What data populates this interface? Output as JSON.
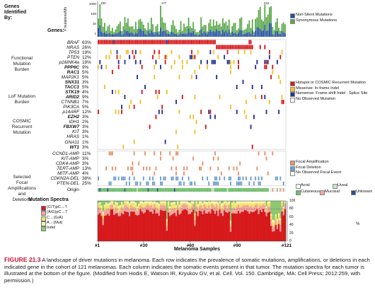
{
  "header": {
    "genes_identified_by": "Genes\nIdentified\nBy:",
    "genes_label": "Genes:",
    "y_axis_label": "# mutations/Mb",
    "y_ticks": [
      "1000",
      "100",
      "10",
      "1"
    ],
    "peaks": [
      "150",
      "177",
      "222"
    ]
  },
  "categories": [
    {
      "label": "Functional\nMutation\nBurden"
    },
    {
      "label": "LoF Mutation\nBurden"
    },
    {
      "label": "COSMIC\nRecurrent\nMutation"
    },
    {
      "label": "Selected\nFocal\nAmplifications\nand\nDeletions"
    }
  ],
  "genes": [
    {
      "name": "BRAF",
      "pct": "63%",
      "style": "i"
    },
    {
      "name": "NRAS",
      "pct": "26%",
      "style": "i"
    },
    {
      "name": "TP53",
      "pct": "19%",
      "style": "i"
    },
    {
      "name": "PTEN",
      "pct": "12%",
      "style": "i"
    },
    {
      "name": "p16INK4a",
      "pct": "19%",
      "style": "i"
    },
    {
      "name": "PPP6C",
      "pct": "9%",
      "style": "b"
    },
    {
      "name": "RAC1",
      "pct": "5%",
      "style": "b"
    },
    {
      "name": "MAP2K1",
      "pct": "5%",
      "style": "i"
    },
    {
      "name": "SNX31",
      "pct": "3%",
      "style": "b"
    },
    {
      "name": "TACC1",
      "pct": "5%",
      "style": "b"
    },
    {
      "name": "STK19",
      "pct": "4%",
      "style": "b"
    },
    {
      "name": "ARID2",
      "pct": "9%",
      "style": "b"
    },
    {
      "name": "CTNNB1",
      "pct": "7%",
      "style": "i"
    },
    {
      "name": "PIK3CA",
      "pct": "5%",
      "style": "i"
    },
    {
      "name": "p14ARF",
      "pct": "12%",
      "style": "i"
    },
    {
      "name": "EZH2",
      "pct": "3%",
      "style": "b"
    },
    {
      "name": "IDH1",
      "pct": "2%",
      "style": "i"
    },
    {
      "name": "FBXW7",
      "pct": "3%",
      "style": "b"
    },
    {
      "name": "KIT",
      "pct": "3%",
      "style": "i"
    },
    {
      "name": "HRAS",
      "pct": "1%",
      "style": "i"
    },
    {
      "name": "GNA11",
      "pct": "1%",
      "style": "i"
    },
    {
      "name": "WT1",
      "pct": "3%",
      "style": "b"
    }
  ],
  "cnv": [
    {
      "name": "CCND1-AMP",
      "pct": "11%"
    },
    {
      "name": "KIT-AMP",
      "pct": "3%"
    },
    {
      "name": "CDK4-AMP",
      "pct": "3%"
    },
    {
      "name": "TERT-AMP",
      "pct": "13%"
    },
    {
      "name": "MITF-AMP",
      "pct": "4%"
    },
    {
      "name": "CDKN2A-DEL",
      "pct": "38%"
    },
    {
      "name": "PTEN-DEL",
      "pct": "25%"
    }
  ],
  "origin_label": "Origin",
  "legend_top": [
    {
      "label": "Non-Silent Mutations",
      "color": "#1f4e9c"
    },
    {
      "label": "Synonymous Mutations",
      "color": "#59a84a"
    }
  ],
  "legend_mut": [
    {
      "label": "Hotspot or COSMIC Recurrent Mutation",
      "color": "#d7191c"
    },
    {
      "label": "Missense: In-frame Indel",
      "color": "#f2c12e"
    },
    {
      "label": "Nonsense: Frame-shift Indel : Splice Site",
      "color": "#253494"
    },
    {
      "label": "No Observed Mutation",
      "color": "#ffffff"
    }
  ],
  "legend_cnv": [
    {
      "label": "Focal Amplification",
      "color": "#e8926b"
    },
    {
      "label": "Focal Deletion",
      "color": "#6f9fd0"
    },
    {
      "label": "No Observed Focal Event",
      "color": "#ffffff"
    }
  ],
  "legend_origin": [
    {
      "label": "Acral",
      "color": "#ffffff"
    },
    {
      "label": "Uveal",
      "color": "#c7e7c0"
    },
    {
      "label": "Cutaneous",
      "color": "#6bbf68"
    },
    {
      "label": "Mucosal",
      "color": "#f4a9a0"
    },
    {
      "label": "Unknown",
      "color": "#2b4f8e"
    }
  ],
  "spectra": {
    "title": "Mutation Spectra",
    "items": [
      {
        "label": "(C/T)pC→T",
        "color": "#d7191c"
      },
      {
        "label": "(A/G)pC→T",
        "color": "#f4a3a0"
      },
      {
        "label": "C→(G/A)",
        "color": "#f2e26b"
      },
      {
        "label": "A→(Mut)",
        "color": "#f6f2a8"
      },
      {
        "label": "Indel",
        "color": "#8cc870"
      }
    ],
    "y_ticks": [
      "100",
      "80",
      "60",
      "40",
      "20",
      "0"
    ],
    "y_unit": "%"
  },
  "x_ticks": [
    "#1",
    "#30",
    "#60",
    "#90",
    "#121"
  ],
  "x_label": "Melanoma Samples",
  "caption": {
    "figure": "FIGURE 21.3",
    "text": "A landscape of driver mutations in melanoma. Each row indicates the prevalence of somatic mutations, amplifications, or deletions in each indicated gene in the cohort of 121 melanomas. Each column indicates the somatic events present in that tumor. The mutation spectra for each tumor is illustrated at the bottom of the figure. (Modified from Hodis E, Watson IR, Kryukov GV, et al. Cell. Vol. 150. Cambridge, MA: Cell Press; 2012:259, with permission.)"
  }
}
